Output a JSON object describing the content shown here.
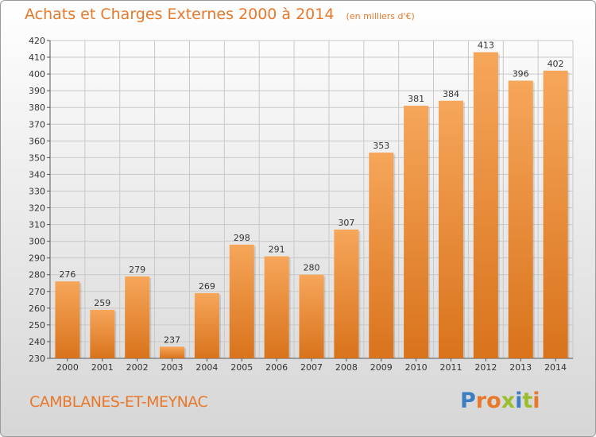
{
  "header": {
    "title": "Achats et Charges Externes 2000 à 2014",
    "subtitle": "(en milliers d'€)"
  },
  "footer": {
    "commune": "CAMBLANES-ET-MEYNAC",
    "brand": "Proxiti"
  },
  "colors": {
    "accent": "#e8782b",
    "bar_light": "#f6a65a",
    "bar_dark": "#d9731c",
    "grid": "#c9c9c9",
    "brand_letters": [
      "#3a7fc4",
      "#e8782b",
      "#e8782b",
      "#9bbd2e",
      "#3a7fc4",
      "#9bbd2e",
      "#e8782b"
    ]
  },
  "chart_data": {
    "type": "bar",
    "title": "Achats et Charges Externes 2000 à 2014",
    "subtitle": "(en milliers d'€)",
    "categories": [
      "2000",
      "2001",
      "2002",
      "2003",
      "2004",
      "2005",
      "2006",
      "2007",
      "2008",
      "2009",
      "2010",
      "2011",
      "2012",
      "2013",
      "2014"
    ],
    "values": [
      276,
      259,
      279,
      237,
      269,
      298,
      291,
      280,
      307,
      353,
      381,
      384,
      413,
      396,
      402
    ],
    "xlabel": "",
    "ylabel": "",
    "ylim": [
      230,
      420
    ],
    "yticks": [
      230,
      240,
      250,
      260,
      270,
      280,
      290,
      300,
      310,
      320,
      330,
      340,
      350,
      360,
      370,
      380,
      390,
      400,
      410,
      420
    ],
    "grid": true,
    "data_labels": true
  }
}
